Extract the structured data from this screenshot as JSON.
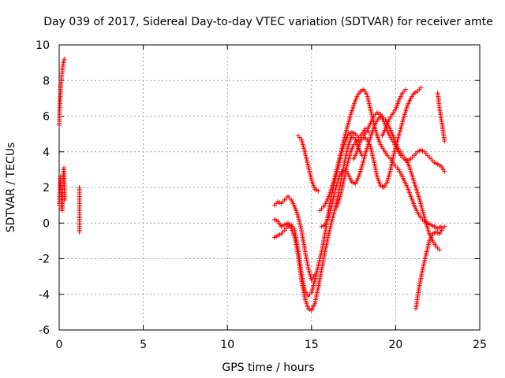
{
  "chart_data": {
    "type": "scatter",
    "title": "Day 039 of 2017, Sidereal Day-to-day VTEC variation (SDTVAR) for receiver amte",
    "xlabel": "GPS time / hours",
    "ylabel": "SDTVAR / TECUs",
    "xlim": [
      0,
      25
    ],
    "ylim": [
      -6,
      10
    ],
    "xticks": [
      0,
      5,
      10,
      15,
      20,
      25
    ],
    "yticks": [
      -6,
      -4,
      -2,
      0,
      2,
      4,
      6,
      8,
      10
    ],
    "grid": true,
    "marker": "+",
    "color": "#ff0000",
    "series": [
      {
        "values": [
          [
            0.0,
            5.5
          ],
          [
            0.02,
            6.2
          ],
          [
            0.05,
            6.8
          ],
          [
            0.08,
            7.4
          ],
          [
            0.1,
            7.8
          ],
          [
            0.13,
            8.0
          ],
          [
            0.16,
            8.3
          ],
          [
            0.19,
            8.6
          ],
          [
            0.22,
            8.8
          ],
          [
            0.25,
            9.0
          ],
          [
            0.28,
            9.1
          ],
          [
            0.3,
            9.2
          ]
        ]
      },
      {
        "values": [
          [
            0.0,
            1.0
          ],
          [
            0.02,
            1.3
          ],
          [
            0.04,
            1.8
          ],
          [
            0.06,
            2.3
          ],
          [
            0.08,
            2.6
          ],
          [
            0.1,
            2.2
          ],
          [
            0.12,
            1.7
          ],
          [
            0.14,
            1.2
          ],
          [
            0.16,
            0.8
          ],
          [
            0.18,
            0.7
          ],
          [
            0.2,
            1.6
          ],
          [
            0.22,
            2.0
          ],
          [
            0.24,
            2.5
          ],
          [
            0.26,
            2.8
          ],
          [
            0.28,
            3.1
          ],
          [
            0.3,
            2.2
          ],
          [
            0.32,
            1.3
          ]
        ]
      },
      {
        "values": [
          [
            1.2,
            2.0
          ],
          [
            1.2,
            0.1
          ],
          [
            1.2,
            -0.3
          ],
          [
            1.2,
            -0.5
          ]
        ]
      },
      {
        "values": [
          [
            12.8,
            1.0
          ],
          [
            13.0,
            1.2
          ],
          [
            13.2,
            1.1
          ],
          [
            13.4,
            1.3
          ],
          [
            13.6,
            1.5
          ],
          [
            13.8,
            1.3
          ],
          [
            14.0,
            0.9
          ],
          [
            14.2,
            0.4
          ],
          [
            14.4,
            -0.4
          ],
          [
            14.6,
            -1.5
          ],
          [
            14.8,
            -2.5
          ],
          [
            15.0,
            -3.2
          ],
          [
            15.2,
            -2.9
          ]
        ]
      },
      {
        "values": [
          [
            12.8,
            0.2
          ],
          [
            13.0,
            0.1
          ],
          [
            13.2,
            -0.2
          ],
          [
            13.4,
            -0.1
          ],
          [
            13.6,
            0.0
          ],
          [
            13.8,
            -0.3
          ],
          [
            14.0,
            -0.8
          ],
          [
            14.2,
            -1.8
          ],
          [
            14.4,
            -3.2
          ],
          [
            14.6,
            -4.2
          ],
          [
            14.8,
            -4.8
          ],
          [
            15.0,
            -4.9
          ],
          [
            15.2,
            -4.5
          ],
          [
            15.4,
            -3.6
          ],
          [
            15.6,
            -2.6
          ],
          [
            15.8,
            -1.6
          ],
          [
            16.0,
            -0.7
          ],
          [
            16.2,
            0.1
          ],
          [
            16.4,
            0.8
          ],
          [
            16.6,
            1.6
          ],
          [
            16.8,
            2.6
          ],
          [
            17.0,
            3.6
          ],
          [
            17.2,
            4.4
          ],
          [
            17.4,
            4.9
          ],
          [
            17.6,
            4.7
          ],
          [
            17.8,
            4.2
          ],
          [
            18.0,
            3.8
          ]
        ]
      },
      {
        "values": [
          [
            12.8,
            -0.8
          ],
          [
            13.0,
            -0.7
          ],
          [
            13.2,
            -0.6
          ],
          [
            13.4,
            -0.4
          ],
          [
            13.6,
            -0.2
          ],
          [
            13.8,
            -0.1
          ],
          [
            14.0,
            -0.4
          ],
          [
            14.2,
            -1.5
          ],
          [
            14.4,
            -2.8
          ],
          [
            14.6,
            -3.8
          ],
          [
            14.8,
            -4.1
          ],
          [
            15.0,
            -3.9
          ],
          [
            15.2,
            -3.2
          ],
          [
            15.4,
            -2.4
          ],
          [
            15.6,
            -1.6
          ],
          [
            15.8,
            -0.6
          ],
          [
            16.0,
            0.6
          ],
          [
            16.2,
            1.6
          ],
          [
            16.4,
            2.4
          ],
          [
            16.6,
            3.2
          ],
          [
            16.8,
            4.0
          ],
          [
            17.0,
            4.6
          ],
          [
            17.2,
            5.0
          ],
          [
            17.4,
            5.1
          ],
          [
            17.6,
            5.0
          ],
          [
            17.8,
            4.8
          ],
          [
            18.0,
            5.0
          ],
          [
            18.2,
            5.3
          ],
          [
            18.4,
            5.1
          ]
        ]
      },
      {
        "values": [
          [
            14.2,
            4.9
          ],
          [
            14.4,
            4.7
          ],
          [
            14.6,
            4.0
          ],
          [
            14.8,
            3.2
          ],
          [
            15.0,
            2.4
          ],
          [
            15.2,
            1.9
          ],
          [
            15.4,
            1.8
          ]
        ]
      },
      {
        "values": [
          [
            15.5,
            0.7
          ],
          [
            15.7,
            0.9
          ],
          [
            15.9,
            1.2
          ],
          [
            16.1,
            1.7
          ],
          [
            16.3,
            2.3
          ],
          [
            16.5,
            3.0
          ],
          [
            16.7,
            3.8
          ],
          [
            16.9,
            4.6
          ],
          [
            17.1,
            5.3
          ],
          [
            17.3,
            6.0
          ],
          [
            17.5,
            6.6
          ],
          [
            17.7,
            7.1
          ],
          [
            17.9,
            7.4
          ],
          [
            18.1,
            7.5
          ],
          [
            18.3,
            7.2
          ],
          [
            18.5,
            6.4
          ],
          [
            18.7,
            5.6
          ],
          [
            18.9,
            4.9
          ],
          [
            19.1,
            4.4
          ],
          [
            19.3,
            4.1
          ],
          [
            19.5,
            3.8
          ],
          [
            19.7,
            3.6
          ],
          [
            19.9,
            3.3
          ],
          [
            20.1,
            3.1
          ],
          [
            20.3,
            2.8
          ],
          [
            20.5,
            2.4
          ],
          [
            20.7,
            2.0
          ],
          [
            20.9,
            1.5
          ],
          [
            21.1,
            1.0
          ],
          [
            21.3,
            0.6
          ],
          [
            21.5,
            0.3
          ],
          [
            21.7,
            0.1
          ],
          [
            21.9,
            0.0
          ],
          [
            22.1,
            -0.1
          ],
          [
            22.3,
            -0.2
          ],
          [
            22.5,
            -0.3
          ],
          [
            22.7,
            -0.2
          ],
          [
            22.9,
            -0.2
          ]
        ]
      },
      {
        "values": [
          [
            15.6,
            -0.2
          ],
          [
            15.8,
            -0.1
          ],
          [
            16.0,
            0.3
          ],
          [
            16.2,
            1.0
          ],
          [
            16.4,
            1.8
          ],
          [
            16.6,
            2.5
          ],
          [
            16.8,
            2.9
          ],
          [
            17.0,
            3.0
          ],
          [
            17.2,
            2.7
          ],
          [
            17.4,
            2.3
          ],
          [
            17.6,
            2.2
          ],
          [
            17.8,
            2.6
          ],
          [
            18.0,
            3.2
          ],
          [
            18.2,
            3.9
          ],
          [
            18.4,
            4.5
          ],
          [
            18.6,
            5.1
          ],
          [
            18.8,
            5.6
          ],
          [
            19.0,
            5.9
          ],
          [
            19.2,
            6.0
          ],
          [
            19.4,
            5.8
          ],
          [
            19.6,
            5.4
          ],
          [
            19.8,
            5.0
          ],
          [
            20.0,
            4.5
          ],
          [
            20.2,
            4.1
          ],
          [
            20.4,
            3.8
          ],
          [
            20.6,
            3.6
          ],
          [
            20.8,
            3.2
          ],
          [
            21.0,
            2.6
          ],
          [
            21.2,
            2.0
          ],
          [
            21.4,
            1.4
          ],
          [
            21.6,
            0.7
          ],
          [
            21.8,
            0.0
          ],
          [
            22.0,
            -0.6
          ],
          [
            22.2,
            -1.0
          ],
          [
            22.4,
            -1.3
          ],
          [
            22.6,
            -1.5
          ]
        ]
      },
      {
        "values": [
          [
            16.5,
            0.9
          ],
          [
            16.7,
            1.5
          ],
          [
            16.9,
            2.3
          ],
          [
            17.1,
            3.2
          ],
          [
            17.3,
            3.9
          ],
          [
            17.5,
            4.4
          ],
          [
            17.7,
            4.6
          ],
          [
            17.9,
            4.7
          ],
          [
            18.1,
            4.9
          ],
          [
            18.3,
            5.2
          ],
          [
            18.5,
            5.6
          ],
          [
            18.7,
            6.0
          ],
          [
            18.9,
            6.2
          ],
          [
            19.1,
            6.1
          ],
          [
            19.3,
            5.7
          ],
          [
            19.5,
            5.2
          ],
          [
            19.7,
            4.8
          ],
          [
            19.9,
            4.5
          ],
          [
            20.1,
            4.1
          ],
          [
            20.3,
            3.8
          ],
          [
            20.5,
            3.6
          ],
          [
            20.7,
            3.5
          ],
          [
            20.9,
            3.6
          ],
          [
            21.1,
            3.8
          ],
          [
            21.3,
            4.0
          ],
          [
            21.5,
            4.1
          ],
          [
            21.7,
            4.0
          ],
          [
            21.9,
            3.8
          ],
          [
            22.1,
            3.6
          ],
          [
            22.3,
            3.4
          ],
          [
            22.5,
            3.3
          ],
          [
            22.7,
            3.2
          ],
          [
            22.9,
            2.9
          ]
        ]
      },
      {
        "values": [
          [
            17.5,
            3.6
          ],
          [
            17.7,
            4.0
          ],
          [
            17.9,
            4.6
          ],
          [
            18.1,
            4.8
          ],
          [
            18.3,
            4.7
          ],
          [
            18.5,
            4.3
          ],
          [
            18.7,
            3.5
          ],
          [
            18.9,
            2.6
          ],
          [
            19.1,
            2.1
          ],
          [
            19.3,
            2.0
          ],
          [
            19.5,
            2.3
          ],
          [
            19.7,
            3.0
          ],
          [
            19.9,
            3.9
          ],
          [
            20.1,
            4.6
          ],
          [
            20.3,
            5.3
          ],
          [
            20.5,
            6.0
          ],
          [
            20.7,
            6.6
          ],
          [
            20.9,
            7.0
          ],
          [
            21.1,
            7.3
          ],
          [
            21.3,
            7.4
          ],
          [
            21.5,
            7.6
          ]
        ]
      },
      {
        "values": [
          [
            19.2,
            4.9
          ],
          [
            19.4,
            5.3
          ],
          [
            19.6,
            5.8
          ],
          [
            19.8,
            6.1
          ],
          [
            20.0,
            6.4
          ],
          [
            20.2,
            6.9
          ],
          [
            20.4,
            7.3
          ],
          [
            20.6,
            7.5
          ]
        ]
      },
      {
        "values": [
          [
            21.2,
            -4.8
          ],
          [
            21.4,
            -3.6
          ],
          [
            21.6,
            -2.6
          ],
          [
            21.8,
            -1.8
          ],
          [
            22.0,
            -1.0
          ],
          [
            22.2,
            -0.6
          ],
          [
            22.4,
            -0.5
          ],
          [
            22.6,
            -0.6
          ],
          [
            22.8,
            -0.3
          ]
        ]
      },
      {
        "values": [
          [
            22.5,
            7.3
          ],
          [
            22.6,
            6.5
          ],
          [
            22.7,
            5.9
          ],
          [
            22.8,
            5.3
          ],
          [
            22.9,
            4.6
          ]
        ]
      }
    ]
  }
}
